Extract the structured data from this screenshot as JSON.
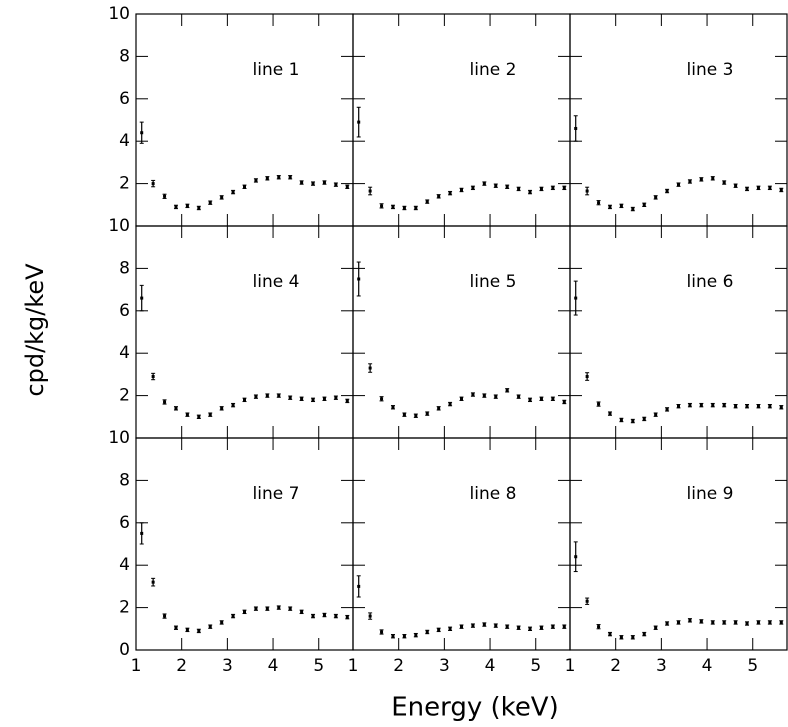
{
  "x_label": "Energy (keV)",
  "y_label": "cpd/kg/keV",
  "chart_data": [
    {
      "type": "errorbar",
      "title": "line 1",
      "color": "#000000",
      "xlim": [
        1,
        5.75
      ],
      "ylim": [
        0,
        10
      ],
      "xticks": [
        1,
        2,
        3,
        4,
        5
      ],
      "yticks": [
        0,
        2,
        4,
        6,
        8,
        10
      ],
      "x": [
        1.125,
        1.375,
        1.625,
        1.875,
        2.125,
        2.375,
        2.625,
        2.875,
        3.125,
        3.375,
        3.625,
        3.875,
        4.125,
        4.375,
        4.625,
        4.875,
        5.125,
        5.375,
        5.625
      ],
      "values": [
        4.4,
        2.0,
        1.4,
        0.9,
        0.95,
        0.85,
        1.1,
        1.35,
        1.6,
        1.85,
        2.15,
        2.25,
        2.3,
        2.3,
        2.05,
        2.0,
        2.05,
        1.95,
        1.85
      ],
      "errors": [
        0.5,
        0.15,
        0.1,
        0.08,
        0.08,
        0.08,
        0.08,
        0.08,
        0.08,
        0.08,
        0.08,
        0.08,
        0.08,
        0.08,
        0.08,
        0.08,
        0.08,
        0.08,
        0.08
      ]
    },
    {
      "type": "errorbar",
      "title": "line 2",
      "color": "#000000",
      "xlim": [
        1,
        5.75
      ],
      "ylim": [
        0,
        10
      ],
      "xticks": [
        1,
        2,
        3,
        4,
        5
      ],
      "yticks": [
        0,
        2,
        4,
        6,
        8,
        10
      ],
      "x": [
        1.125,
        1.375,
        1.625,
        1.875,
        2.125,
        2.375,
        2.625,
        2.875,
        3.125,
        3.375,
        3.625,
        3.875,
        4.125,
        4.375,
        4.625,
        4.875,
        5.125,
        5.375,
        5.625
      ],
      "values": [
        4.9,
        1.65,
        0.95,
        0.9,
        0.85,
        0.85,
        1.15,
        1.4,
        1.55,
        1.7,
        1.8,
        2.0,
        1.9,
        1.85,
        1.75,
        1.6,
        1.75,
        1.8,
        1.8
      ],
      "errors": [
        0.7,
        0.18,
        0.1,
        0.08,
        0.08,
        0.08,
        0.08,
        0.08,
        0.08,
        0.08,
        0.08,
        0.08,
        0.08,
        0.08,
        0.08,
        0.08,
        0.08,
        0.08,
        0.08
      ]
    },
    {
      "type": "errorbar",
      "title": "line 3",
      "color": "#000000",
      "xlim": [
        1,
        5.75
      ],
      "ylim": [
        0,
        10
      ],
      "xticks": [
        1,
        2,
        3,
        4,
        5
      ],
      "yticks": [
        0,
        2,
        4,
        6,
        8,
        10
      ],
      "x": [
        1.125,
        1.375,
        1.625,
        1.875,
        2.125,
        2.375,
        2.625,
        2.875,
        3.125,
        3.375,
        3.625,
        3.875,
        4.125,
        4.375,
        4.625,
        4.875,
        5.125,
        5.375,
        5.625
      ],
      "values": [
        4.6,
        1.65,
        1.1,
        0.9,
        0.95,
        0.8,
        1.0,
        1.35,
        1.65,
        1.95,
        2.1,
        2.2,
        2.25,
        2.05,
        1.9,
        1.75,
        1.8,
        1.8,
        1.7
      ],
      "errors": [
        0.6,
        0.18,
        0.1,
        0.08,
        0.08,
        0.08,
        0.08,
        0.08,
        0.08,
        0.08,
        0.08,
        0.08,
        0.08,
        0.08,
        0.08,
        0.08,
        0.08,
        0.08,
        0.08
      ]
    },
    {
      "type": "errorbar",
      "title": "line 4",
      "color": "#000000",
      "xlim": [
        1,
        5.75
      ],
      "ylim": [
        0,
        10
      ],
      "xticks": [
        1,
        2,
        3,
        4,
        5
      ],
      "yticks": [
        0,
        2,
        4,
        6,
        8,
        10
      ],
      "x": [
        1.125,
        1.375,
        1.625,
        1.875,
        2.125,
        2.375,
        2.625,
        2.875,
        3.125,
        3.375,
        3.625,
        3.875,
        4.125,
        4.375,
        4.625,
        4.875,
        5.125,
        5.375,
        5.625
      ],
      "values": [
        6.6,
        2.9,
        1.7,
        1.4,
        1.1,
        1.0,
        1.1,
        1.4,
        1.55,
        1.8,
        1.95,
        2.0,
        2.0,
        1.9,
        1.85,
        1.8,
        1.85,
        1.9,
        1.75
      ],
      "errors": [
        0.6,
        0.15,
        0.1,
        0.08,
        0.08,
        0.08,
        0.08,
        0.08,
        0.08,
        0.08,
        0.08,
        0.08,
        0.08,
        0.08,
        0.08,
        0.08,
        0.08,
        0.08,
        0.08
      ]
    },
    {
      "type": "errorbar",
      "title": "line 5",
      "color": "#000000",
      "xlim": [
        1,
        5.75
      ],
      "ylim": [
        0,
        10
      ],
      "xticks": [
        1,
        2,
        3,
        4,
        5
      ],
      "yticks": [
        0,
        2,
        4,
        6,
        8,
        10
      ],
      "x": [
        1.125,
        1.375,
        1.625,
        1.875,
        2.125,
        2.375,
        2.625,
        2.875,
        3.125,
        3.375,
        3.625,
        3.875,
        4.125,
        4.375,
        4.625,
        4.875,
        5.125,
        5.375,
        5.625
      ],
      "values": [
        7.5,
        3.3,
        1.85,
        1.45,
        1.1,
        1.05,
        1.15,
        1.4,
        1.6,
        1.85,
        2.05,
        2.0,
        1.95,
        2.25,
        1.95,
        1.8,
        1.85,
        1.85,
        1.7
      ],
      "errors": [
        0.8,
        0.2,
        0.1,
        0.08,
        0.08,
        0.08,
        0.08,
        0.08,
        0.08,
        0.08,
        0.08,
        0.08,
        0.08,
        0.08,
        0.08,
        0.08,
        0.08,
        0.08,
        0.08
      ]
    },
    {
      "type": "errorbar",
      "title": "line 6",
      "color": "#000000",
      "xlim": [
        1,
        5.75
      ],
      "ylim": [
        0,
        10
      ],
      "xticks": [
        1,
        2,
        3,
        4,
        5
      ],
      "yticks": [
        0,
        2,
        4,
        6,
        8,
        10
      ],
      "x": [
        1.125,
        1.375,
        1.625,
        1.875,
        2.125,
        2.375,
        2.625,
        2.875,
        3.125,
        3.375,
        3.625,
        3.875,
        4.125,
        4.375,
        4.625,
        4.875,
        5.125,
        5.375,
        5.625
      ],
      "values": [
        6.6,
        2.9,
        1.6,
        1.15,
        0.85,
        0.8,
        0.9,
        1.1,
        1.35,
        1.5,
        1.55,
        1.55,
        1.55,
        1.55,
        1.5,
        1.5,
        1.5,
        1.5,
        1.45
      ],
      "errors": [
        0.8,
        0.18,
        0.1,
        0.08,
        0.08,
        0.08,
        0.08,
        0.08,
        0.08,
        0.08,
        0.08,
        0.08,
        0.08,
        0.08,
        0.08,
        0.08,
        0.08,
        0.08,
        0.08
      ]
    },
    {
      "type": "errorbar",
      "title": "line 7",
      "color": "#000000",
      "xlim": [
        1,
        5.75
      ],
      "ylim": [
        0,
        10
      ],
      "xticks": [
        1,
        2,
        3,
        4,
        5
      ],
      "yticks": [
        0,
        2,
        4,
        6,
        8,
        10
      ],
      "x": [
        1.125,
        1.375,
        1.625,
        1.875,
        2.125,
        2.375,
        2.625,
        2.875,
        3.125,
        3.375,
        3.625,
        3.875,
        4.125,
        4.375,
        4.625,
        4.875,
        5.125,
        5.375,
        5.625
      ],
      "values": [
        5.5,
        3.2,
        1.6,
        1.05,
        0.95,
        0.9,
        1.1,
        1.3,
        1.6,
        1.8,
        1.95,
        1.95,
        2.0,
        1.95,
        1.8,
        1.6,
        1.65,
        1.6,
        1.55
      ],
      "errors": [
        0.5,
        0.18,
        0.1,
        0.08,
        0.08,
        0.08,
        0.08,
        0.08,
        0.08,
        0.08,
        0.08,
        0.08,
        0.08,
        0.08,
        0.08,
        0.08,
        0.08,
        0.08,
        0.08
      ]
    },
    {
      "type": "errorbar",
      "title": "line 8",
      "color": "#000000",
      "xlim": [
        1,
        5.75
      ],
      "ylim": [
        0,
        10
      ],
      "xticks": [
        1,
        2,
        3,
        4,
        5
      ],
      "yticks": [
        0,
        2,
        4,
        6,
        8,
        10
      ],
      "x": [
        1.125,
        1.375,
        1.625,
        1.875,
        2.125,
        2.375,
        2.625,
        2.875,
        3.125,
        3.375,
        3.625,
        3.875,
        4.125,
        4.375,
        4.625,
        4.875,
        5.125,
        5.375,
        5.625
      ],
      "values": [
        3.0,
        1.6,
        0.85,
        0.65,
        0.65,
        0.7,
        0.85,
        0.95,
        1.0,
        1.1,
        1.15,
        1.2,
        1.15,
        1.1,
        1.05,
        1.0,
        1.05,
        1.1,
        1.1
      ],
      "errors": [
        0.5,
        0.15,
        0.1,
        0.08,
        0.08,
        0.08,
        0.08,
        0.08,
        0.08,
        0.08,
        0.08,
        0.08,
        0.08,
        0.08,
        0.08,
        0.08,
        0.08,
        0.08,
        0.08
      ]
    },
    {
      "type": "errorbar",
      "title": "line 9",
      "color": "#000000",
      "xlim": [
        1,
        5.75
      ],
      "ylim": [
        0,
        10
      ],
      "xticks": [
        1,
        2,
        3,
        4,
        5
      ],
      "yticks": [
        0,
        2,
        4,
        6,
        8,
        10
      ],
      "x": [
        1.125,
        1.375,
        1.625,
        1.875,
        2.125,
        2.375,
        2.625,
        2.875,
        3.125,
        3.375,
        3.625,
        3.875,
        4.125,
        4.375,
        4.625,
        4.875,
        5.125,
        5.375,
        5.625
      ],
      "values": [
        4.4,
        2.3,
        1.1,
        0.75,
        0.6,
        0.6,
        0.75,
        1.05,
        1.25,
        1.3,
        1.4,
        1.35,
        1.3,
        1.3,
        1.3,
        1.25,
        1.3,
        1.3,
        1.3
      ],
      "errors": [
        0.7,
        0.15,
        0.1,
        0.08,
        0.08,
        0.08,
        0.08,
        0.08,
        0.08,
        0.08,
        0.08,
        0.08,
        0.08,
        0.08,
        0.08,
        0.08,
        0.08,
        0.08,
        0.08
      ]
    }
  ]
}
